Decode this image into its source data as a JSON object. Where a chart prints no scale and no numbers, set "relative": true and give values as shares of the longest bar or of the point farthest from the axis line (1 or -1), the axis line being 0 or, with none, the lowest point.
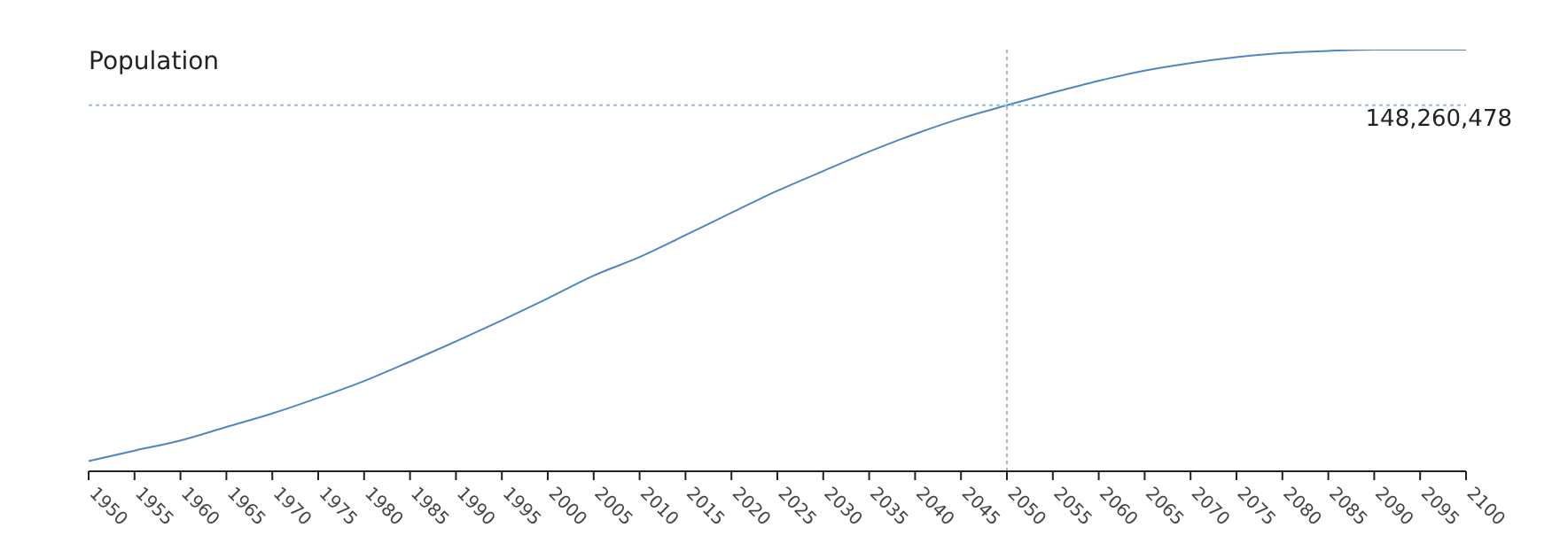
{
  "chart_data": {
    "type": "line",
    "title": "Population",
    "relative": true,
    "x": [
      1950,
      1955,
      1960,
      1965,
      1970,
      1975,
      1980,
      1985,
      1990,
      1995,
      2000,
      2005,
      2010,
      2015,
      2020,
      2025,
      2030,
      2035,
      2040,
      2045,
      2050,
      2055,
      2060,
      2065,
      2070,
      2075,
      2080,
      2085,
      2090,
      2095,
      2100
    ],
    "values": [
      0.024,
      0.049,
      0.073,
      0.105,
      0.137,
      0.174,
      0.214,
      0.26,
      0.308,
      0.358,
      0.41,
      0.464,
      0.508,
      0.56,
      0.613,
      0.665,
      0.712,
      0.758,
      0.8,
      0.837,
      0.868,
      0.898,
      0.926,
      0.95,
      0.968,
      0.982,
      0.992,
      0.997,
      1.0,
      1.0,
      1.0
    ],
    "color": "#4f86c0",
    "xlim": [
      1950,
      2100
    ],
    "xticks": [
      1950,
      1955,
      1960,
      1965,
      1970,
      1975,
      1980,
      1985,
      1990,
      1995,
      2000,
      2005,
      2010,
      2015,
      2020,
      2025,
      2030,
      2035,
      2040,
      2045,
      2050,
      2055,
      2060,
      2065,
      2070,
      2075,
      2080,
      2085,
      2090,
      2095,
      2100
    ],
    "ref_lines": [
      {
        "axis": "x",
        "value": 2050,
        "color": "#9dbbdc",
        "line_style": "dotted"
      },
      {
        "axis": "y",
        "value": 0.868,
        "color": "#9dbbdc",
        "line_style": "dotted"
      }
    ],
    "annotations": [
      "148,260,478"
    ]
  }
}
